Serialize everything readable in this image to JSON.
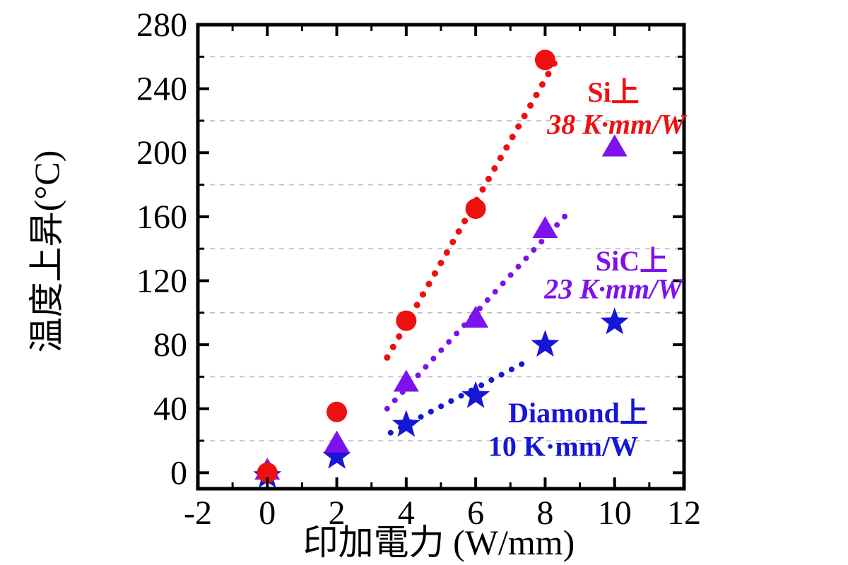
{
  "page": {
    "background": "#ffffff"
  },
  "chart_data": {
    "type": "scatter",
    "title": "",
    "xlabel": "印加電力 (W/mm)",
    "ylabel": "温度上昇(°C)",
    "xlim": [
      -2,
      12
    ],
    "ylim": [
      -10,
      280
    ],
    "x_major_ticks": [
      -2,
      0,
      2,
      4,
      6,
      8,
      10,
      12
    ],
    "x_minor_ticks": [
      -1,
      1,
      3,
      5,
      7,
      9,
      11
    ],
    "y_major_ticks": [
      0,
      40,
      80,
      120,
      160,
      200,
      240,
      280
    ],
    "y_minor_ticks": [
      20,
      60,
      100,
      140,
      180,
      220,
      260
    ],
    "grid": {
      "show": true,
      "color": "#bdbdbd",
      "dash": "7 7",
      "on": "y-minor"
    },
    "axis_color": "#000000",
    "legend_position": "inline-annotations",
    "series": [
      {
        "name": "Si",
        "marker": "circle",
        "color": "#ee1010",
        "annotation": {
          "line1": "Si上",
          "line2": "38 K·mm/W"
        },
        "x": [
          0,
          2,
          4,
          6,
          8
        ],
        "y": [
          0,
          38,
          95,
          165,
          258
        ],
        "trend": {
          "x1": 3.45,
          "y1": 72,
          "x2": 8.4,
          "y2": 261
        }
      },
      {
        "name": "SiC",
        "marker": "triangle",
        "color": "#7d12ee",
        "annotation": {
          "line1": "SiC上",
          "line2": "23 K·mm/W"
        },
        "x": [
          0,
          2,
          4,
          6,
          8,
          10
        ],
        "y": [
          1,
          18,
          56,
          96,
          152,
          203
        ],
        "trend": {
          "x1": 3.45,
          "y1": 40,
          "x2": 8.6,
          "y2": 161
        }
      },
      {
        "name": "Diamond",
        "marker": "star",
        "color": "#1616d6",
        "annotation": {
          "line1": "Diamond上",
          "line2": "10 K·mm/W"
        },
        "x": [
          0,
          2,
          4,
          6,
          8,
          10
        ],
        "y": [
          -2,
          10,
          30,
          48,
          80,
          94
        ],
        "trend": {
          "x1": 3.55,
          "y1": 25,
          "x2": 7.6,
          "y2": 71
        }
      }
    ]
  }
}
